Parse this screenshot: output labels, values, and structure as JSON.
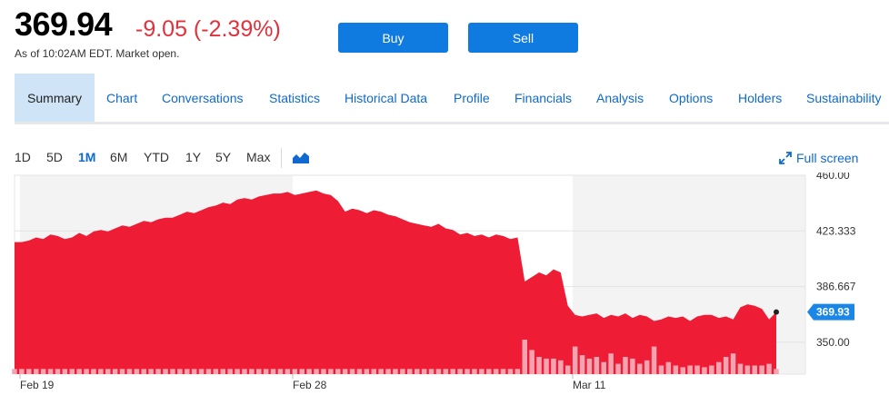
{
  "quote": {
    "price": "369.94",
    "change": "-9.05 (-2.39%)",
    "as_of": "As of 10:02AM EDT. Market open."
  },
  "actions": {
    "buy_label": "Buy",
    "sell_label": "Sell"
  },
  "tabs": [
    {
      "label": "Summary",
      "active": true
    },
    {
      "label": "Chart"
    },
    {
      "label": "Conversations"
    },
    {
      "label": "Statistics"
    },
    {
      "label": "Historical Data"
    },
    {
      "label": "Profile"
    },
    {
      "label": "Financials"
    },
    {
      "label": "Analysis"
    },
    {
      "label": "Options"
    },
    {
      "label": "Holders"
    },
    {
      "label": "Sustainability"
    }
  ],
  "ranges": [
    {
      "label": "1D"
    },
    {
      "label": "5D"
    },
    {
      "label": "1M",
      "active": true
    },
    {
      "label": "6M"
    },
    {
      "label": "YTD"
    },
    {
      "label": "1Y"
    },
    {
      "label": "5Y"
    },
    {
      "label": "Max"
    }
  ],
  "chart_type_icon": "mountain-chart-icon",
  "fullscreen": {
    "label": "Full screen",
    "icon": "expand-arrows-icon"
  },
  "colors": {
    "accent": "#0f7be0",
    "negative": "#e0323c",
    "area": "#ee1c35",
    "volume": "#f4a3b0",
    "shade": "#f3f3f3",
    "current_badge": "#1a87e8"
  },
  "chart_data": {
    "type": "area",
    "x_labels": [
      "Feb 19",
      "Feb 28",
      "Mar 11"
    ],
    "y_ticks": [
      "460.00",
      "423.333",
      "386.667",
      "350.00"
    ],
    "ylim": [
      329,
      460
    ],
    "current_value_label": "369.93",
    "current_value": 369.93,
    "grid": true,
    "price_values": [
      416,
      416,
      417,
      419,
      418,
      421,
      420,
      418,
      419,
      422,
      420,
      423,
      424,
      423,
      425,
      427,
      426,
      428,
      430,
      429,
      431,
      432,
      432,
      434,
      436,
      435,
      437,
      439,
      440,
      442,
      441,
      444,
      445,
      444,
      446,
      447,
      448,
      448,
      449,
      447,
      448,
      449,
      450,
      448,
      447,
      443,
      436,
      438,
      437,
      435,
      437,
      436,
      434,
      433,
      431,
      429,
      428,
      427,
      426,
      428,
      425,
      424,
      421,
      422,
      420,
      421,
      419,
      421,
      420,
      418,
      419,
      390,
      393,
      396,
      394,
      398,
      396,
      374,
      368,
      367,
      368,
      369,
      366,
      368,
      367,
      369,
      366,
      368,
      367,
      364,
      365,
      367,
      366,
      367,
      364,
      367,
      368,
      368,
      366,
      367,
      365,
      373,
      375,
      374,
      372,
      365,
      369.93
    ],
    "volume_values": [
      3,
      3,
      3,
      3,
      3,
      3,
      3,
      3,
      3,
      3,
      3,
      3,
      3,
      3,
      3,
      3,
      3,
      3,
      3,
      3,
      3,
      3,
      3,
      3,
      3,
      3,
      3,
      3,
      3,
      3,
      3,
      3,
      3,
      3,
      3,
      3,
      3,
      3,
      3,
      3,
      3,
      3,
      3,
      3,
      3,
      3,
      3,
      3,
      3,
      3,
      3,
      3,
      3,
      3,
      3,
      3,
      3,
      3,
      3,
      3,
      3,
      3,
      3,
      3,
      3,
      3,
      3,
      3,
      3,
      3,
      3,
      20,
      14,
      10,
      9,
      9,
      8,
      5,
      16,
      11,
      9,
      10,
      7,
      12,
      6,
      10,
      9,
      6,
      8,
      16,
      5,
      7,
      5,
      4,
      5,
      5,
      4,
      5,
      7,
      10,
      12,
      6,
      5,
      5,
      5,
      6,
      3
    ]
  }
}
